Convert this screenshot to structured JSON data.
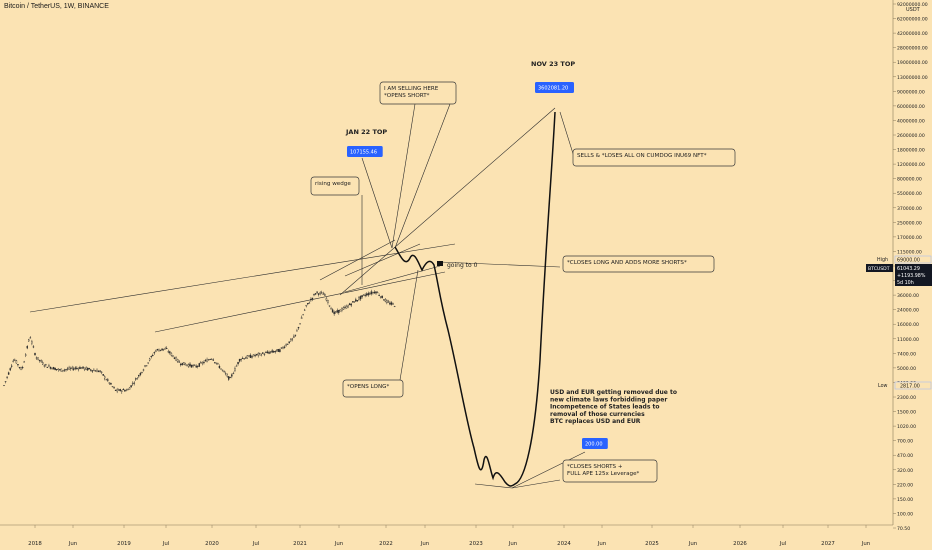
{
  "header": {
    "symbol_title": "Bitcoin / TetherUS, 1W, BINANCE"
  },
  "colors": {
    "background": "#fbe3b3",
    "candle": "#2b2b2b",
    "tag_blue": "#2962ff",
    "price_tag": "#131722"
  },
  "chart_data": {
    "type": "line",
    "title": "Bitcoin / TetherUS, 1W, BINANCE",
    "y_scale": "log",
    "currency": "USDT",
    "y_ticks": [
      "92000000.00",
      "62000000.00",
      "42000000.00",
      "28000000.00",
      "19000000.00",
      "13000000.00",
      "9000000.00",
      "6000000.00",
      "4000000.00",
      "2600000.00",
      "1800000.00",
      "1200000.00",
      "800000.00",
      "550000.00",
      "370000.00",
      "250000.00",
      "170000.00",
      "115000.00",
      "79000.00",
      "54000.00",
      "36000.00",
      "24000.00",
      "16000.00",
      "11000.00",
      "7400.00",
      "5000.00",
      "3400.00",
      "2300.00",
      "1500.00",
      "1020.00",
      "700.00",
      "470.00",
      "320.00",
      "220.00",
      "150.00",
      "100.00",
      "70.50"
    ],
    "x_ticks": [
      "2018",
      "Jun",
      "2019",
      "Jul",
      "2020",
      "Jul",
      "2021",
      "Jun",
      "2022",
      "Jun",
      "2023",
      "Jun",
      "2024",
      "Jun",
      "2025",
      "Jun",
      "2026",
      "Jul",
      "2027",
      "Jun"
    ],
    "price_markers": {
      "high_label": "High",
      "high_value": "69000.00",
      "low_label": "Low",
      "low_value": "2817.00",
      "current_symbol": "BTCUSDT",
      "current_value": "61043.29",
      "current_change": "+1193.98%",
      "current_time": "5d 10h"
    },
    "price_tags": [
      "107155.46",
      "3602081.20",
      "200.00"
    ],
    "headlines": [
      "JAN 22 TOP",
      "NOV 23 TOP"
    ],
    "annotations": [
      "I AM SELLING HERE\n*OPENS SHORT*",
      "rising wedge",
      "SELLS & *LOSES ALL ON CUMDOG INU69 NFT*",
      "*CLOSES LONG AND ADDS MORE SHORTS*",
      "*OPENS LONG*",
      "*CLOSES SHORTS +\nFULL APE 125x Leverage*"
    ],
    "flag_note": "going to 0",
    "narrative": [
      "USD and EUR getting removed due to",
      "new climate laws forbidding paper",
      "Incompetence of States leads to",
      "removal of those currencies",
      "BTC replaces USD and EUR"
    ]
  }
}
